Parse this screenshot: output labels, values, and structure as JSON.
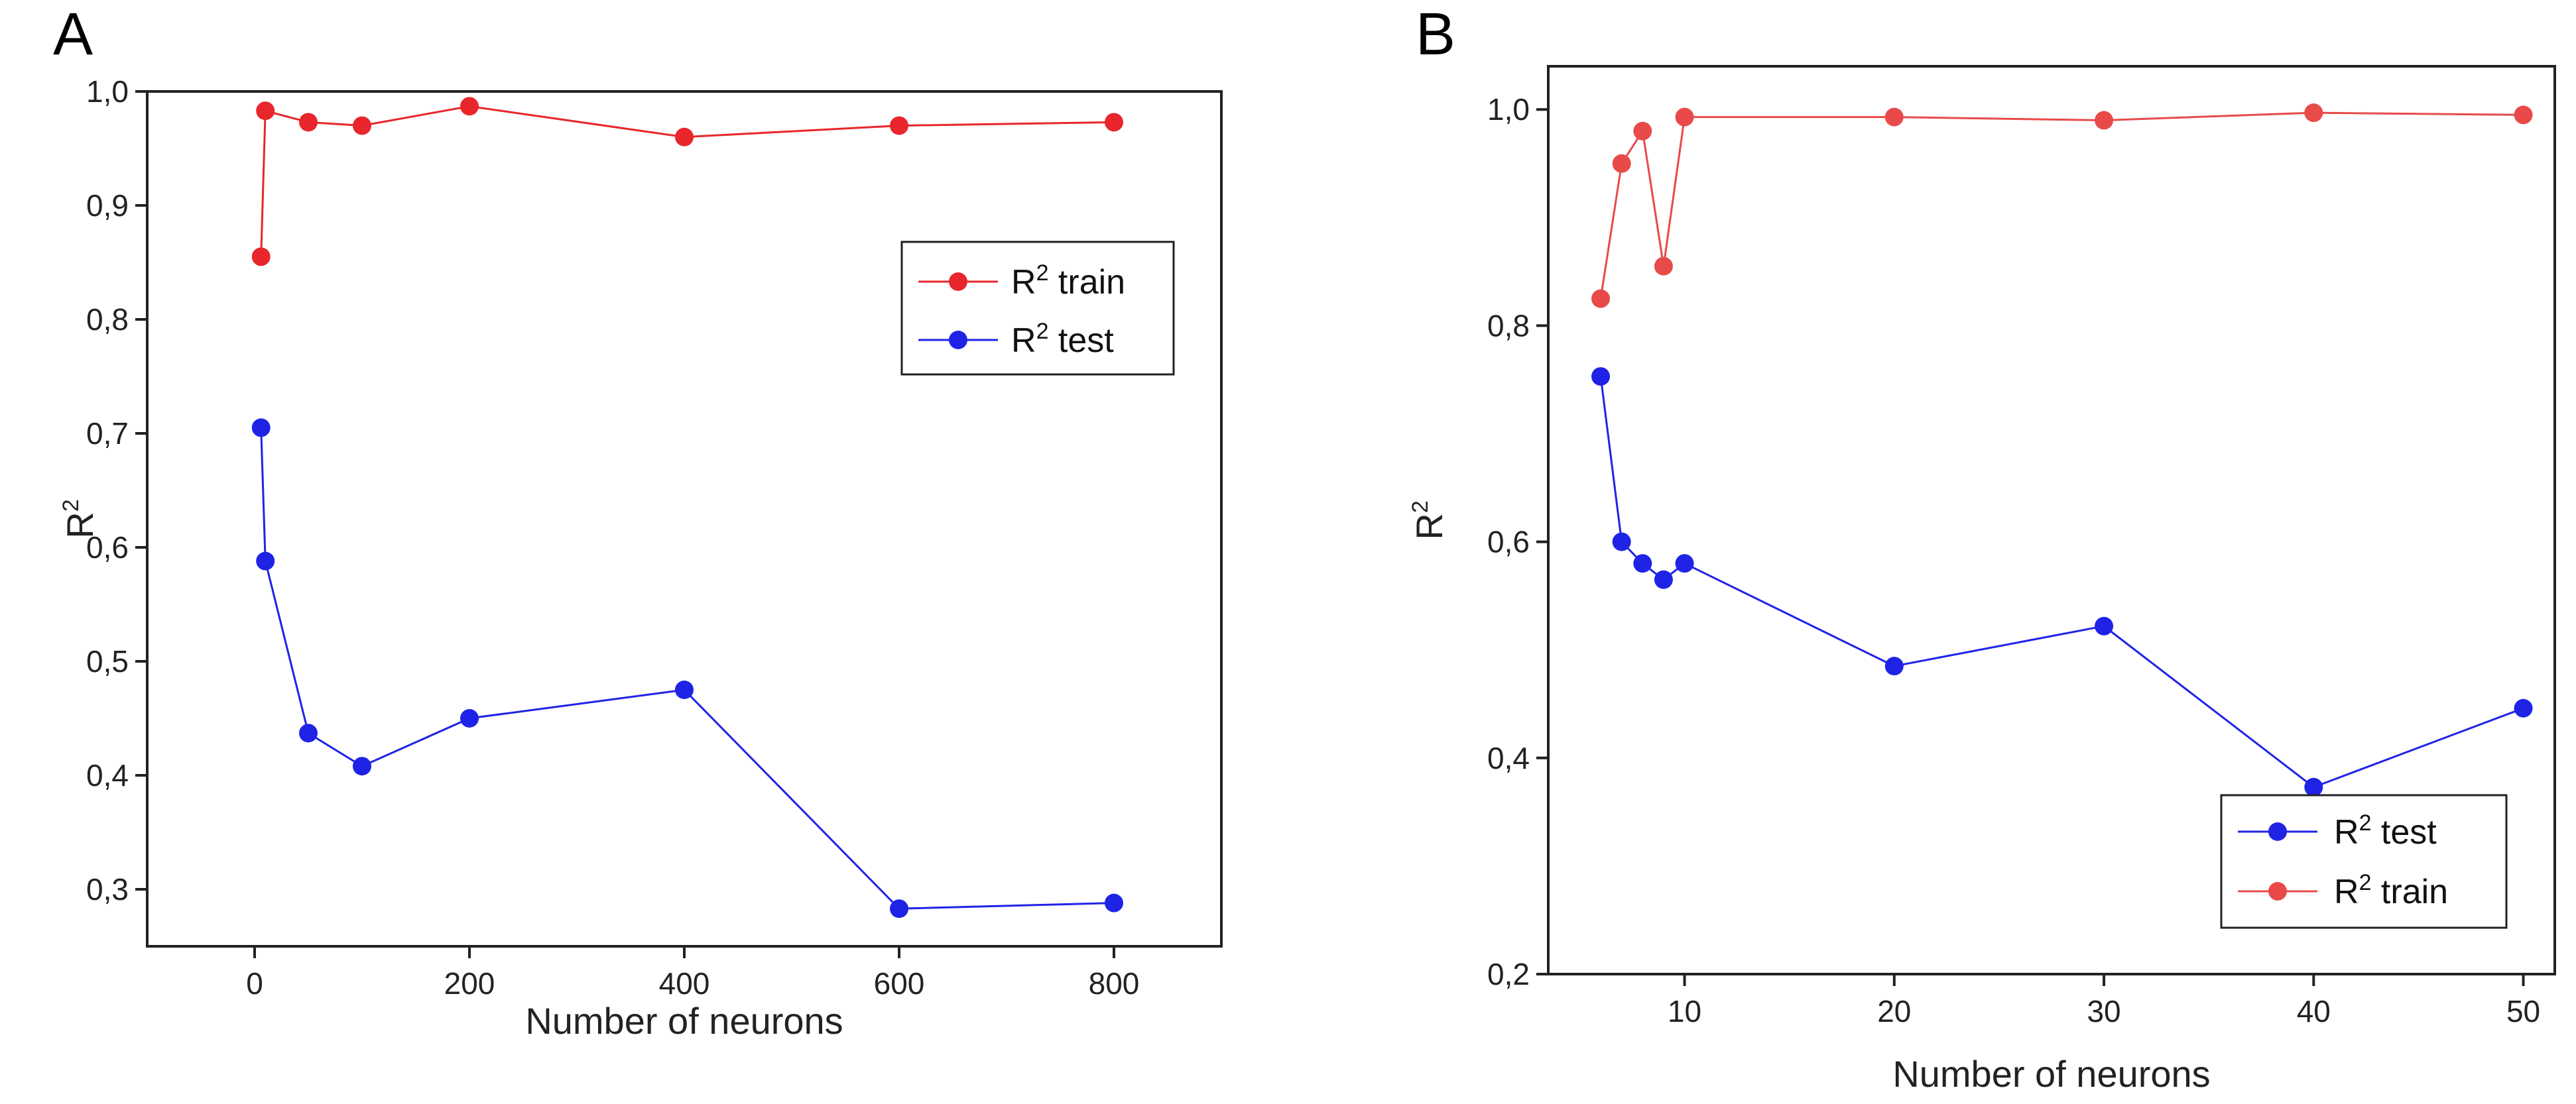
{
  "chart_data": [
    {
      "panel": "A",
      "type": "line",
      "xlabel": "Number of neurons",
      "ylabel_base": "R",
      "ylabel_sup": "2",
      "xlim": [
        -100,
        900
      ],
      "ylim": [
        0.25,
        1.0
      ],
      "xticks": [
        0,
        200,
        400,
        600,
        800
      ],
      "xtick_labels": [
        "0",
        "200",
        "400",
        "600",
        "800"
      ],
      "yticks": [
        0.3,
        0.4,
        0.5,
        0.6,
        0.7,
        0.8,
        0.9,
        1.0
      ],
      "ytick_labels": [
        "0,3",
        "0,4",
        "0,5",
        "0,6",
        "0,7",
        "0,8",
        "0,9",
        "1,0"
      ],
      "legend_position": "top-right",
      "legend": [
        {
          "base": "R",
          "sup": "2",
          "rest": " train",
          "series": "train"
        },
        {
          "base": "R",
          "sup": "2",
          "rest": " test",
          "series": "test"
        }
      ],
      "series": [
        {
          "name": "train",
          "color": "#e8262b",
          "x": [
            6,
            10,
            50,
            100,
            200,
            400,
            600,
            800
          ],
          "y": [
            0.855,
            0.983,
            0.973,
            0.97,
            0.987,
            0.96,
            0.97,
            0.973
          ]
        },
        {
          "name": "test",
          "color": "#1f23e6",
          "x": [
            6,
            10,
            50,
            100,
            200,
            400,
            600,
            800
          ],
          "y": [
            0.705,
            0.588,
            0.437,
            0.408,
            0.45,
            0.475,
            0.283,
            0.288
          ]
        }
      ]
    },
    {
      "panel": "B",
      "type": "line",
      "xlabel": "Number of neurons",
      "ylabel_base": "R",
      "ylabel_sup": "2",
      "xlim": [
        3.5,
        51.5
      ],
      "ylim": [
        0.2,
        1.04
      ],
      "xticks": [
        10,
        20,
        30,
        40,
        50
      ],
      "xtick_labels": [
        "10",
        "20",
        "30",
        "40",
        "50"
      ],
      "yticks": [
        0.2,
        0.4,
        0.6,
        0.8,
        1.0
      ],
      "ytick_labels": [
        "0,2",
        "0,4",
        "0,6",
        "0,8",
        "1,0"
      ],
      "legend_position": "bottom-right",
      "legend": [
        {
          "base": "R",
          "sup": "2",
          "rest": " test",
          "series": "test"
        },
        {
          "base": "R",
          "sup": "2",
          "rest": " train",
          "series": "train"
        }
      ],
      "series": [
        {
          "name": "test",
          "color": "#1f23e6",
          "x": [
            6,
            7,
            8,
            9,
            10,
            20,
            30,
            40,
            50
          ],
          "y": [
            0.753,
            0.6,
            0.58,
            0.565,
            0.58,
            0.485,
            0.522,
            0.373,
            0.446
          ]
        },
        {
          "name": "train",
          "color": "#e84a4a",
          "x": [
            6,
            7,
            8,
            9,
            10,
            20,
            30,
            40,
            50
          ],
          "y": [
            0.825,
            0.95,
            0.98,
            0.855,
            0.993,
            0.993,
            0.99,
            0.997,
            0.995
          ]
        }
      ]
    }
  ]
}
